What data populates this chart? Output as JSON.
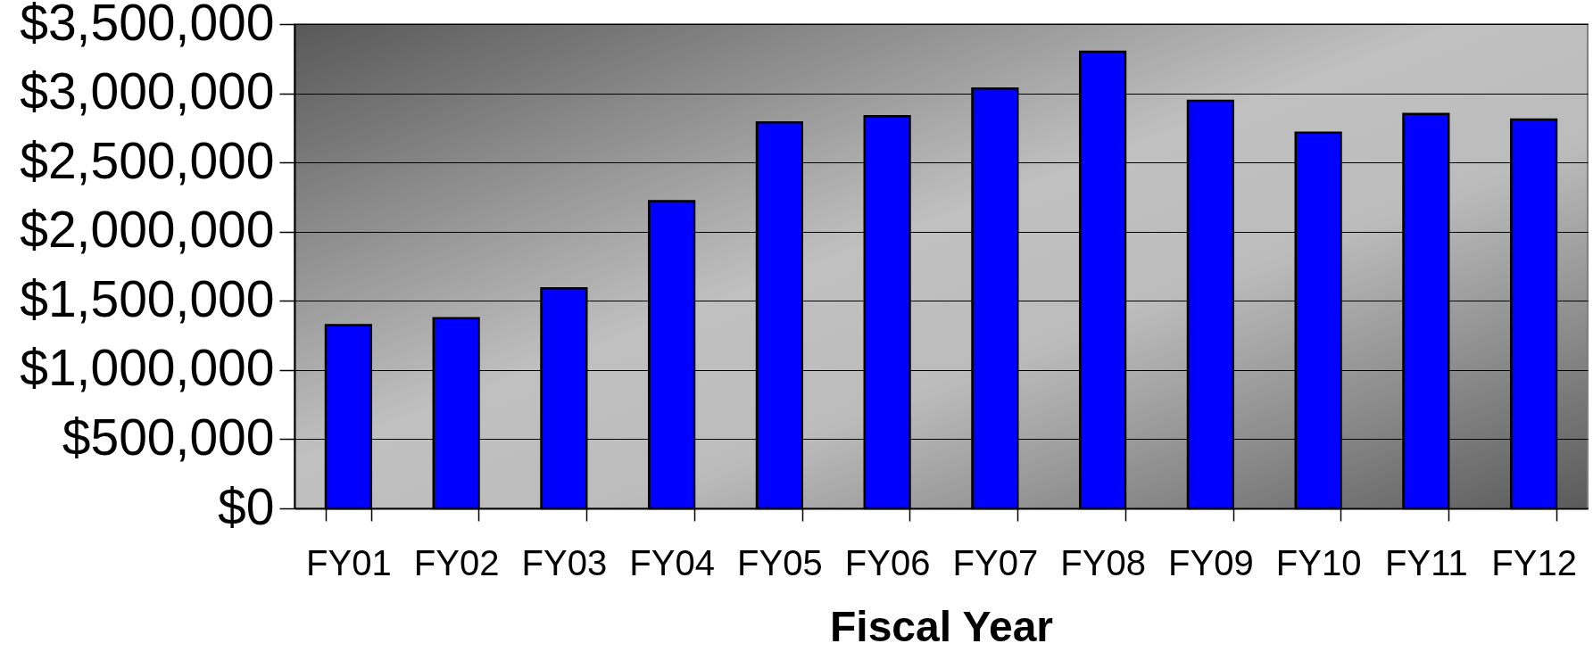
{
  "chart_data": {
    "type": "bar",
    "xlabel": "Fiscal Year",
    "categories": [
      "FY01",
      "FY02",
      "FY03",
      "FY04",
      "FY05",
      "FY06",
      "FY07",
      "FY08",
      "FY09",
      "FY10",
      "FY11",
      "FY12"
    ],
    "values": [
      1325000,
      1375000,
      1590000,
      2220000,
      2790000,
      2835000,
      3035000,
      3300000,
      2945000,
      2715000,
      2850000,
      2810000
    ],
    "color": "#0000ff",
    "ylim": [
      0,
      3500000
    ],
    "yticks": [
      {
        "value": 0,
        "label": "$0"
      },
      {
        "value": 500000,
        "label": "$500,000"
      },
      {
        "value": 1000000,
        "label": "$1,000,000"
      },
      {
        "value": 1500000,
        "label": "$1,500,000"
      },
      {
        "value": 2000000,
        "label": "$2,000,000"
      },
      {
        "value": 2500000,
        "label": "$2,500,000"
      },
      {
        "value": 3000000,
        "label": "$3,000,000"
      },
      {
        "value": 3500000,
        "label": "$3,500,000"
      }
    ],
    "grid": "y"
  }
}
